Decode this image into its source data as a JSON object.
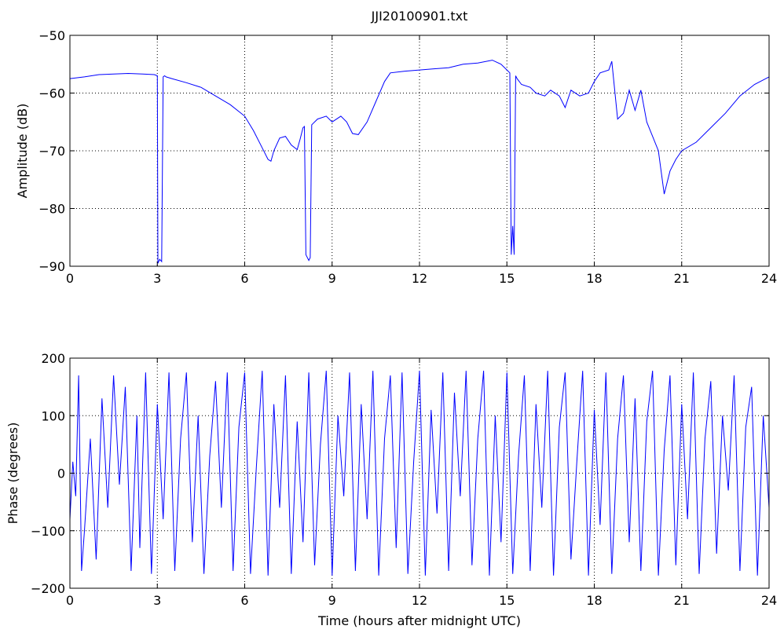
{
  "title": "JJI20100901.txt",
  "chart_data": [
    {
      "type": "line",
      "ylabel": "Amplitude (dB)",
      "xlabel": "",
      "xlim": [
        0,
        24
      ],
      "ylim": [
        -90,
        -50
      ],
      "xticks": [
        0,
        3,
        6,
        9,
        12,
        15,
        18,
        21,
        24
      ],
      "yticks": [
        -90,
        -80,
        -70,
        -60,
        -50
      ],
      "xtick_labels": [
        "0",
        "3",
        "6",
        "9",
        "12",
        "15",
        "18",
        "21",
        "24"
      ],
      "ytick_labels": [
        "−90",
        "−80",
        "−70",
        "−60",
        "−50"
      ],
      "grid": true,
      "line_color": "#0000ff",
      "series": [
        {
          "x": [
            0,
            0.5,
            1,
            1.5,
            2,
            2.5,
            2.9,
            3.0,
            3.02,
            3.08,
            3.15,
            3.2,
            3.25,
            3.3,
            3.5,
            4,
            4.5,
            5,
            5.5,
            6,
            6.3,
            6.6,
            6.8,
            6.9,
            7.0,
            7.2,
            7.4,
            7.6,
            7.8,
            7.9,
            8.0,
            8.05,
            8.1,
            8.2,
            8.25,
            8.3,
            8.5,
            8.8,
            9.0,
            9.3,
            9.5,
            9.7,
            9.9,
            10.2,
            10.5,
            10.8,
            11,
            11.5,
            12,
            12.5,
            13,
            13.5,
            14,
            14.5,
            14.8,
            15.0,
            15.1,
            15.15,
            15.2,
            15.25,
            15.3,
            15.35,
            15.5,
            15.8,
            16,
            16.3,
            16.5,
            16.8,
            17.0,
            17.2,
            17.5,
            17.8,
            18.0,
            18.2,
            18.5,
            18.6,
            18.8,
            19.0,
            19.2,
            19.4,
            19.6,
            19.8,
            20.0,
            20.2,
            20.4,
            20.6,
            20.8,
            21,
            21.5,
            22,
            22.5,
            23,
            23.5,
            24
          ],
          "y": [
            -57.5,
            -57.2,
            -56.8,
            -56.7,
            -56.6,
            -56.7,
            -56.8,
            -57.0,
            -89.5,
            -88.8,
            -89.2,
            -57.2,
            -57.0,
            -57.2,
            -57.5,
            -58.2,
            -59.0,
            -60.5,
            -62.0,
            -64.0,
            -66.5,
            -69.5,
            -71.5,
            -71.8,
            -70.0,
            -67.8,
            -67.5,
            -69.0,
            -69.8,
            -68.0,
            -66.0,
            -65.8,
            -88.0,
            -89.0,
            -88.5,
            -65.5,
            -64.5,
            -64.0,
            -65.0,
            -64.0,
            -65.0,
            -67.0,
            -67.2,
            -65.0,
            -61.5,
            -58.0,
            -56.5,
            -56.2,
            -56.0,
            -55.8,
            -55.6,
            -55.0,
            -54.8,
            -54.3,
            -55.0,
            -56.0,
            -56.5,
            -88.0,
            -83.0,
            -88.0,
            -57.0,
            -57.5,
            -58.5,
            -59.0,
            -60.0,
            -60.5,
            -59.5,
            -60.5,
            -62.5,
            -59.5,
            -60.5,
            -60.0,
            -58.0,
            -56.5,
            -56.0,
            -54.5,
            -64.5,
            -63.5,
            -59.5,
            -63.0,
            -59.5,
            -65.0,
            -67.5,
            -70.0,
            -77.5,
            -73.5,
            -71.5,
            -70.0,
            -68.5,
            -66.0,
            -63.5,
            -60.5,
            -58.5,
            -57.2
          ]
        }
      ]
    },
    {
      "type": "line",
      "ylabel": "Phase (degrees)",
      "xlabel": "Time (hours after midnight UTC)",
      "xlim": [
        0,
        24
      ],
      "ylim": [
        -200,
        200
      ],
      "xticks": [
        0,
        3,
        6,
        9,
        12,
        15,
        18,
        21,
        24
      ],
      "yticks": [
        -200,
        -100,
        0,
        100,
        200
      ],
      "xtick_labels": [
        "0",
        "3",
        "6",
        "9",
        "12",
        "15",
        "18",
        "21",
        "24"
      ],
      "ytick_labels": [
        "−200",
        "−100",
        "0",
        "100",
        "200"
      ],
      "grid": true,
      "line_color": "#0000ff",
      "series": [
        {
          "x": [
            0,
            0.1,
            0.2,
            0.3,
            0.4,
            0.5,
            0.7,
            0.9,
            1.1,
            1.3,
            1.5,
            1.7,
            1.9,
            2.1,
            2.3,
            2.4,
            2.6,
            2.8,
            3.0,
            3.2,
            3.4,
            3.6,
            3.8,
            4.0,
            4.2,
            4.4,
            4.6,
            4.8,
            5.0,
            5.2,
            5.4,
            5.6,
            5.8,
            6.0,
            6.2,
            6.4,
            6.6,
            6.8,
            7.0,
            7.2,
            7.4,
            7.6,
            7.8,
            8.0,
            8.2,
            8.4,
            8.6,
            8.8,
            9.0,
            9.2,
            9.4,
            9.6,
            9.8,
            10.0,
            10.2,
            10.4,
            10.6,
            10.8,
            11.0,
            11.2,
            11.4,
            11.6,
            11.8,
            12.0,
            12.2,
            12.4,
            12.6,
            12.8,
            13.0,
            13.2,
            13.4,
            13.6,
            13.8,
            14.0,
            14.2,
            14.4,
            14.6,
            14.8,
            15.0,
            15.2,
            15.4,
            15.6,
            15.8,
            16.0,
            16.2,
            16.4,
            16.6,
            16.8,
            17.0,
            17.2,
            17.4,
            17.6,
            17.8,
            18.0,
            18.2,
            18.4,
            18.6,
            18.8,
            19.0,
            19.2,
            19.4,
            19.6,
            19.8,
            20.0,
            20.2,
            20.4,
            20.6,
            20.8,
            21.0,
            21.2,
            21.4,
            21.6,
            21.8,
            22.0,
            22.2,
            22.4,
            22.6,
            22.8,
            23.0,
            23.2,
            23.4,
            23.6,
            23.8,
            24.0
          ],
          "y": [
            -80,
            20,
            -40,
            170,
            -170,
            -100,
            60,
            -150,
            130,
            -60,
            170,
            -20,
            150,
            -170,
            100,
            -130,
            175,
            -175,
            120,
            -80,
            175,
            -170,
            60,
            175,
            -120,
            100,
            -175,
            30,
            160,
            -60,
            175,
            -170,
            80,
            175,
            -175,
            10,
            178,
            -178,
            120,
            -60,
            170,
            -175,
            90,
            -120,
            175,
            -160,
            50,
            178,
            -178,
            100,
            -40,
            175,
            -170,
            120,
            -80,
            178,
            -178,
            60,
            170,
            -130,
            175,
            -175,
            20,
            178,
            -178,
            110,
            -70,
            175,
            -170,
            140,
            -40,
            178,
            -160,
            60,
            178,
            -178,
            100,
            -120,
            175,
            -175,
            30,
            170,
            -170,
            120,
            -60,
            178,
            -178,
            80,
            175,
            -150,
            20,
            178,
            -178,
            110,
            -90,
            175,
            -175,
            60,
            170,
            -120,
            130,
            -170,
            90,
            178,
            -178,
            40,
            170,
            -160,
            120,
            -80,
            175,
            -175,
            60,
            160,
            -140,
            100,
            -30,
            170,
            -170,
            80,
            150,
            -178,
            100,
            -60
          ]
        }
      ]
    }
  ]
}
